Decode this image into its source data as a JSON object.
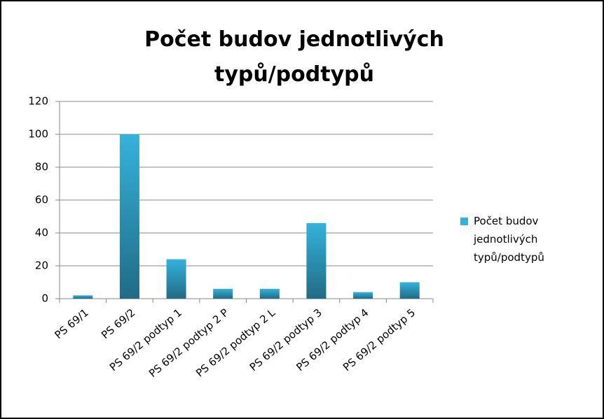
{
  "chart_data": {
    "type": "bar",
    "title": "Počet budov jednotlivých typů/podtypů",
    "categories": [
      "PS 69/1",
      "PS 69/2",
      "PS 69/2 podtyp 1",
      "PS 69/2 podtyp 2 P",
      "PS 69/2 podtyp 2 L",
      "PS 69/2 podtyp 3",
      "PS 69/2 podtyp 4",
      "PS 69/2 podtyp 5"
    ],
    "series": [
      {
        "name": "Počet budov jednotlivých typů/podtypů",
        "color": "#35b2dc",
        "values": [
          2,
          100,
          24,
          6,
          6,
          46,
          4,
          10
        ]
      }
    ],
    "ylim": [
      0,
      120
    ],
    "yticks": [
      0,
      20,
      40,
      60,
      80,
      100,
      120
    ],
    "grid": true,
    "legend": "right"
  }
}
